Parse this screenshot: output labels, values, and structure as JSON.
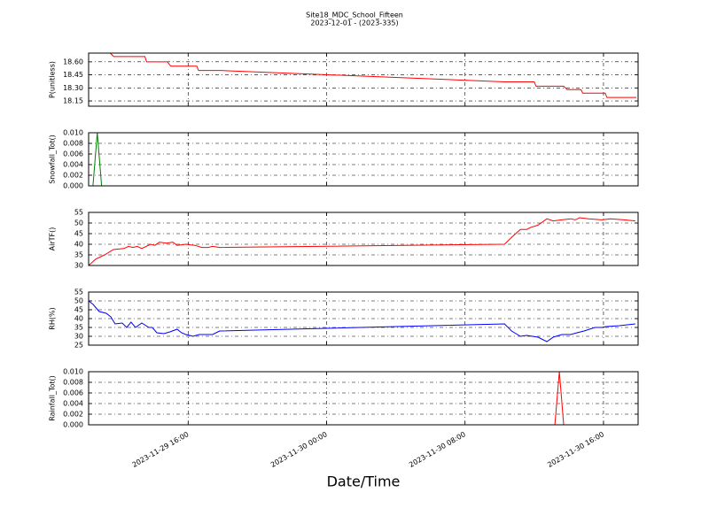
{
  "chart_data": [
    {
      "type": "line",
      "title": "Site18_MDC_School_Fifteen",
      "subtitle": "2023-12-01 - (2023-335)",
      "ylabel": "P(unitless)",
      "x": [
        10.25,
        11.5,
        11.7,
        13.5,
        13.6,
        14.8,
        15.0,
        16.5,
        16.6,
        17.9,
        34.3,
        36.0,
        36.1,
        37.7,
        37.9,
        38.7,
        38.8,
        40.1,
        40.2,
        41.9
      ],
      "series": [
        {
          "color": "#ff0000",
          "values": [
            18.7,
            18.7,
            18.66,
            18.66,
            18.6,
            18.6,
            18.55,
            18.55,
            18.5,
            18.5,
            18.37,
            18.37,
            18.32,
            18.32,
            18.28,
            18.28,
            18.24,
            18.24,
            18.19,
            18.19
          ]
        }
      ],
      "xlim": [
        10.25,
        42
      ],
      "xticks": [
        16,
        24,
        32,
        40
      ],
      "ylim": [
        18.09,
        18.7
      ],
      "yticks": [
        {
          "value": 18.15,
          "label": "18.15"
        },
        {
          "value": 18.3,
          "label": "18.30"
        },
        {
          "value": 18.45,
          "label": "18.45"
        },
        {
          "value": 18.6,
          "label": "18.60"
        }
      ],
      "grid": true
    },
    {
      "type": "line",
      "ylabel": "Snowfall_Tot()",
      "x": [
        10.25,
        10.5,
        10.75,
        11.0,
        17.9,
        25,
        34.3,
        41.9
      ],
      "series": [
        {
          "color": "#008000",
          "values": [
            0,
            0,
            0.01,
            0,
            0,
            null,
            0,
            0
          ]
        }
      ],
      "xlim": [
        10.25,
        42
      ],
      "xticks": [
        16,
        24,
        32,
        40
      ],
      "ylim": [
        0,
        0.01
      ],
      "yticks": [
        {
          "value": 0,
          "label": "0.000"
        },
        {
          "value": 0.002,
          "label": "0.002"
        },
        {
          "value": 0.004,
          "label": "0.004"
        },
        {
          "value": 0.006,
          "label": "0.006"
        },
        {
          "value": 0.008,
          "label": "0.008"
        },
        {
          "value": 0.01,
          "label": "0.010"
        }
      ],
      "grid": true
    },
    {
      "type": "line",
      "ylabel": "AirTF()",
      "x": [
        10.25,
        10.66,
        11.17,
        11.68,
        12.3,
        12.55,
        12.81,
        13.06,
        13.32,
        13.83,
        14.08,
        14.34,
        14.75,
        15.11,
        15.36,
        15.87,
        16.38,
        16.79,
        17.15,
        17.41,
        17.82,
        34.28,
        34.79,
        35.2,
        35.56,
        35.81,
        36.22,
        36.73,
        37.09,
        37.6,
        38.11,
        38.37,
        38.62,
        39.13,
        39.9,
        40.41,
        41.17,
        41.84
      ],
      "series": [
        {
          "color": "#ff0000",
          "values": [
            30,
            33,
            35,
            37.5,
            38,
            39,
            38.5,
            39,
            38,
            40,
            39.5,
            41,
            40.5,
            41,
            39.5,
            40,
            39.5,
            38.5,
            38.5,
            39,
            38.5,
            40,
            44,
            47,
            47,
            48,
            49,
            52,
            51,
            51.5,
            52,
            51.5,
            52.5,
            52,
            51.5,
            52,
            51.5,
            51
          ]
        }
      ],
      "xlim": [
        10.25,
        42
      ],
      "xticks": [
        16,
        24,
        32,
        40
      ],
      "ylim": [
        30,
        55
      ],
      "yticks": [
        30,
        35,
        40,
        45,
        50,
        55
      ],
      "grid": true
    },
    {
      "type": "line",
      "ylabel": "RH(%)",
      "x": [
        10.25,
        10.51,
        10.86,
        11.27,
        11.53,
        11.78,
        12.19,
        12.45,
        12.7,
        12.96,
        13.32,
        13.73,
        13.93,
        14.19,
        14.6,
        14.95,
        15.36,
        15.62,
        15.87,
        16.28,
        16.64,
        17.41,
        17.82,
        34.28,
        34.69,
        35.2,
        35.56,
        36.22,
        36.73,
        37.09,
        37.6,
        38.11,
        38.47,
        38.88,
        39.5,
        39.9,
        40.16,
        40.92,
        41.84
      ],
      "series": [
        {
          "color": "#0000ff",
          "values": [
            50,
            48,
            44,
            43,
            41,
            37,
            37.5,
            35,
            38,
            35,
            37.5,
            35,
            35,
            32,
            31.5,
            32.5,
            34,
            32,
            31,
            30,
            31,
            31,
            33,
            37,
            33,
            30,
            30.5,
            29.5,
            27,
            29.5,
            31,
            31,
            32,
            33,
            35,
            35,
            35.5,
            36,
            37
          ]
        }
      ],
      "xlim": [
        10.25,
        42
      ],
      "xticks": [
        16,
        24,
        32,
        40
      ],
      "ylim": [
        25,
        55
      ],
      "yticks": [
        25,
        30,
        35,
        40,
        45,
        50,
        55
      ],
      "grid": true
    },
    {
      "type": "line",
      "ylabel": "Rainfall_Tot()",
      "xlabel": "Date/Time",
      "x": [
        10.25,
        37.19,
        37.45,
        37.7,
        41.9
      ],
      "series": [
        {
          "color": "#ff0000",
          "values": [
            0,
            0,
            0.01,
            0,
            0
          ]
        }
      ],
      "xlim": [
        10.25,
        42
      ],
      "xticks": [
        {
          "value": 16,
          "label": "2023-11-29 16:00"
        },
        {
          "value": 24,
          "label": "2023-11-30 00:00"
        },
        {
          "value": 32,
          "label": "2023-11-30 08:00"
        },
        {
          "value": 40,
          "label": "2023-11-30 16:00"
        }
      ],
      "ylim": [
        0,
        0.01
      ],
      "yticks": [
        {
          "value": 0,
          "label": "0.000"
        },
        {
          "value": 0.002,
          "label": "0.002"
        },
        {
          "value": 0.004,
          "label": "0.004"
        },
        {
          "value": 0.006,
          "label": "0.006"
        },
        {
          "value": 0.008,
          "label": "0.008"
        },
        {
          "value": 0.01,
          "label": "0.010"
        }
      ],
      "grid": true
    }
  ]
}
